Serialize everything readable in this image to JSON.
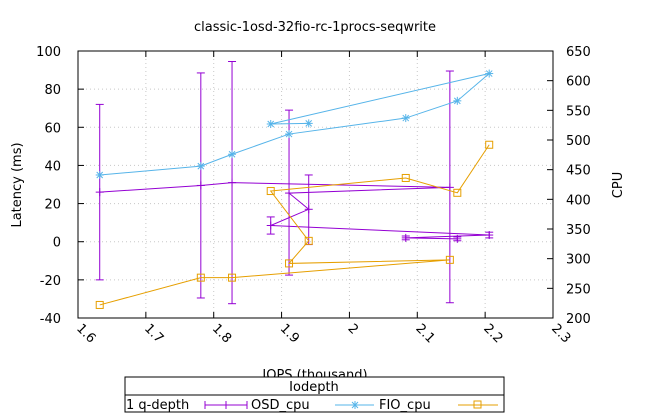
{
  "chart_data": {
    "type": "line",
    "title": "classic-1osd-32fio-rc-1procs-seqwrite",
    "xlabel": "IOPS (thousand)",
    "ylabel": "Latency (ms)",
    "y2label": "CPU",
    "xlim": [
      1.6,
      2.3
    ],
    "ylim": [
      -40,
      100
    ],
    "y2lim": [
      200,
      650
    ],
    "xticks": [
      "1.6",
      "1.7",
      "1.8",
      "1.9",
      "2",
      "2.1",
      "2.2",
      "2.3"
    ],
    "xtick_values": [
      1.6,
      1.7,
      1.8,
      1.9,
      2.0,
      2.1,
      2.2,
      2.3
    ],
    "yticks": [
      "-40",
      "-20",
      "0",
      "20",
      "40",
      "60",
      "80",
      "100"
    ],
    "ytick_values": [
      -40,
      -20,
      0,
      20,
      40,
      60,
      80,
      100
    ],
    "y2ticks": [
      "200",
      "250",
      "300",
      "350",
      "400",
      "450",
      "500",
      "550",
      "600",
      "650"
    ],
    "y2tick_values": [
      200,
      250,
      300,
      350,
      400,
      450,
      500,
      550,
      600,
      650
    ],
    "grid": true,
    "legend": {
      "title": "Iodepth",
      "row_label": "1 q-depth",
      "placement": "bottom"
    },
    "series": [
      {
        "name": "OSD_cpu",
        "axis": "y1",
        "color": "#9400d3",
        "marker": "plus-errorbar",
        "points": [
          {
            "x": 1.632,
            "y": 26,
            "lo": -20,
            "hi": 72
          },
          {
            "x": 1.781,
            "y": 29.5,
            "lo": -29.5,
            "hi": 88.5
          },
          {
            "x": 1.827,
            "y": 31,
            "lo": -32.5,
            "hi": 94.5
          },
          {
            "x": 2.148,
            "y": 28.5,
            "lo": -32,
            "hi": 89.5
          },
          {
            "x": 1.911,
            "y": 25.5,
            "lo": -17.5,
            "hi": 69
          },
          {
            "x": 1.94,
            "y": 17,
            "lo": -1.5,
            "hi": 35
          },
          {
            "x": 1.884,
            "y": 8.5,
            "lo": 4,
            "hi": 13
          },
          {
            "x": 2.206,
            "y": 3.5,
            "lo": 2,
            "hi": 5
          },
          {
            "x": 2.083,
            "y": 2,
            "lo": 1,
            "hi": 3
          },
          {
            "x": 2.159,
            "y": 1.5,
            "lo": 0.5,
            "hi": 2.5
          }
        ]
      },
      {
        "name": "FIO_cpu",
        "axis": "y2",
        "color": "#56b4e9",
        "marker": "star",
        "points": [
          {
            "x": 1.632,
            "y": 441
          },
          {
            "x": 1.781,
            "y": 456
          },
          {
            "x": 1.827,
            "y": 476
          },
          {
            "x": 1.911,
            "y": 510
          },
          {
            "x": 2.083,
            "y": 537
          },
          {
            "x": 2.159,
            "y": 566
          },
          {
            "x": 2.206,
            "y": 612
          },
          {
            "x": 1.884,
            "y": 527
          },
          {
            "x": 1.94,
            "y": 528
          }
        ]
      },
      {
        "name": "",
        "axis": "y2",
        "color": "#e69f00",
        "marker": "square",
        "legend_label": "",
        "points": [
          {
            "x": 1.632,
            "y": 222
          },
          {
            "x": 1.781,
            "y": 268
          },
          {
            "x": 1.827,
            "y": 268
          },
          {
            "x": 2.148,
            "y": 298
          },
          {
            "x": 1.911,
            "y": 292
          },
          {
            "x": 1.94,
            "y": 330
          },
          {
            "x": 1.884,
            "y": 414
          },
          {
            "x": 2.083,
            "y": 436
          },
          {
            "x": 2.159,
            "y": 411
          },
          {
            "x": 2.206,
            "y": 492
          }
        ]
      }
    ]
  }
}
